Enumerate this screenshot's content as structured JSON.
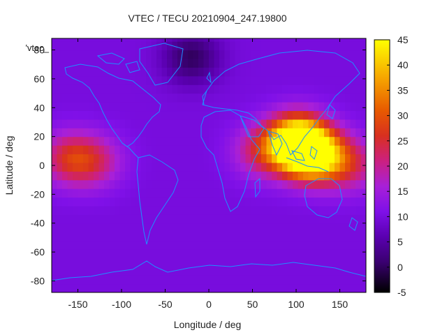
{
  "chart_data": {
    "type": "heatmap",
    "title": "VTEC / TECU 20210904_247.19800",
    "xlabel": "Longitude / deg",
    "ylabel": "Latitude / deg",
    "legend_entry": "'vtec_",
    "xlim": [
      -180,
      180
    ],
    "ylim": [
      -88,
      88
    ],
    "x_ticks": [
      -150,
      -100,
      -50,
      0,
      50,
      100,
      150
    ],
    "y_ticks": [
      -80,
      -60,
      -40,
      -20,
      0,
      20,
      40,
      60,
      80
    ],
    "colorbar": {
      "min": -5,
      "max": 45,
      "ticks": [
        -5,
        0,
        5,
        10,
        15,
        20,
        25,
        30,
        35,
        40,
        45
      ],
      "palette": "black-purple-red-orange-yellow"
    },
    "field": {
      "background_tecu": 10,
      "features": [
        {
          "lon": 110,
          "lat": 10,
          "peak_tecu": 38
        },
        {
          "lon": 100,
          "lat": 17,
          "peak_tecu": 44
        },
        {
          "lon": 135,
          "lat": 5,
          "peak_tecu": 30
        },
        {
          "lon": 60,
          "lat": 10,
          "peak_tecu": 22
        },
        {
          "lon": -160,
          "lat": 5,
          "peak_tecu": 24
        },
        {
          "lon": -130,
          "lat": 3,
          "peak_tecu": 20
        },
        {
          "lon": -20,
          "lat": 75,
          "peak_tecu": 0
        },
        {
          "lon": 170,
          "lat": 0,
          "peak_tecu": 18
        }
      ]
    }
  }
}
